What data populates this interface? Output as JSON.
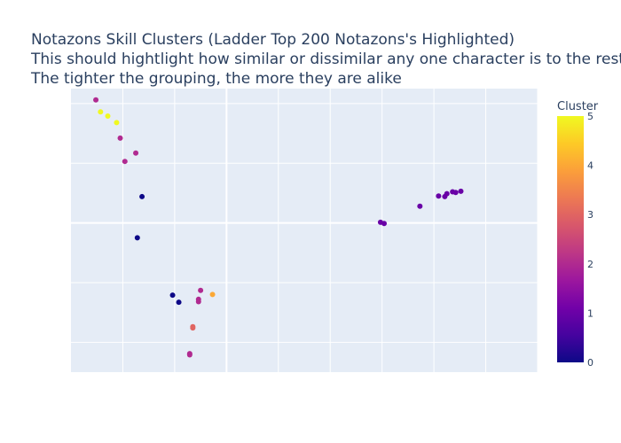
{
  "title_lines": [
    "Notazons Skill Clusters (Ladder Top 200 Notazons's Highlighted)",
    "This should hightlight how similar or dissimilar any one character is to the rest.",
    "The tighter the grouping, the more they are alike"
  ],
  "colors": {
    "plot_bg": "#e5ecf6",
    "grid": "#ffffff",
    "text": "#2a3f5f",
    "colorscale": [
      "#0d0887",
      "#46039f",
      "#7201a8",
      "#9c179e",
      "#bd3786",
      "#d8576b",
      "#ed7953",
      "#fb9f3a",
      "#fdca26",
      "#f0f921"
    ]
  },
  "chart_data": {
    "type": "scatter",
    "title": "Notazons Skill Clusters (Ladder Top 200 Notazons's Highlighted)",
    "xlabel": "",
    "ylabel": "",
    "xticks_shown": false,
    "yticks_shown": false,
    "grid": true,
    "xlim": [
      -30,
      60
    ],
    "ylim": [
      -25,
      22.5
    ],
    "colorbar": {
      "title": "Cluster",
      "range": [
        0,
        5
      ],
      "ticks": [
        "0",
        "1",
        "2",
        "3",
        "4",
        "5"
      ]
    },
    "points": [
      {
        "x": -25.2,
        "y": 20.6,
        "cluster": 2
      },
      {
        "x": -24.3,
        "y": 18.6,
        "cluster": 5
      },
      {
        "x": -22.9,
        "y": 17.9,
        "cluster": 5
      },
      {
        "x": -21.2,
        "y": 16.8,
        "cluster": 5
      },
      {
        "x": -20.5,
        "y": 14.2,
        "cluster": 2
      },
      {
        "x": -19.6,
        "y": 10.3,
        "cluster": 2
      },
      {
        "x": -17.5,
        "y": 11.7,
        "cluster": 2
      },
      {
        "x": -16.3,
        "y": 4.4,
        "cluster": 0
      },
      {
        "x": -17.2,
        "y": -2.5,
        "cluster": 0
      },
      {
        "x": -10.4,
        "y": -12.1,
        "cluster": 0
      },
      {
        "x": -9.2,
        "y": -13.3,
        "cluster": 0
      },
      {
        "x": -5.0,
        "y": -11.3,
        "cluster": 2
      },
      {
        "x": -5.4,
        "y": -12.8,
        "cluster": 2
      },
      {
        "x": -5.4,
        "y": -13.2,
        "cluster": 2
      },
      {
        "x": -2.7,
        "y": -12.0,
        "cluster": 4
      },
      {
        "x": -6.5,
        "y": -17.4,
        "cluster": 3
      },
      {
        "x": -6.5,
        "y": -17.6,
        "cluster": 3
      },
      {
        "x": -7.1,
        "y": -21.9,
        "cluster": 2
      },
      {
        "x": -7.1,
        "y": -22.1,
        "cluster": 2
      },
      {
        "x": 29.7,
        "y": 0.1,
        "cluster": 1
      },
      {
        "x": 30.4,
        "y": -0.1,
        "cluster": 1
      },
      {
        "x": 37.3,
        "y": 2.8,
        "cluster": 1
      },
      {
        "x": 40.9,
        "y": 4.5,
        "cluster": 1
      },
      {
        "x": 42.1,
        "y": 4.4,
        "cluster": 1
      },
      {
        "x": 42.5,
        "y": 4.9,
        "cluster": 1
      },
      {
        "x": 43.6,
        "y": 5.2,
        "cluster": 1
      },
      {
        "x": 44.2,
        "y": 5.1,
        "cluster": 1
      },
      {
        "x": 45.2,
        "y": 5.3,
        "cluster": 1
      }
    ]
  }
}
